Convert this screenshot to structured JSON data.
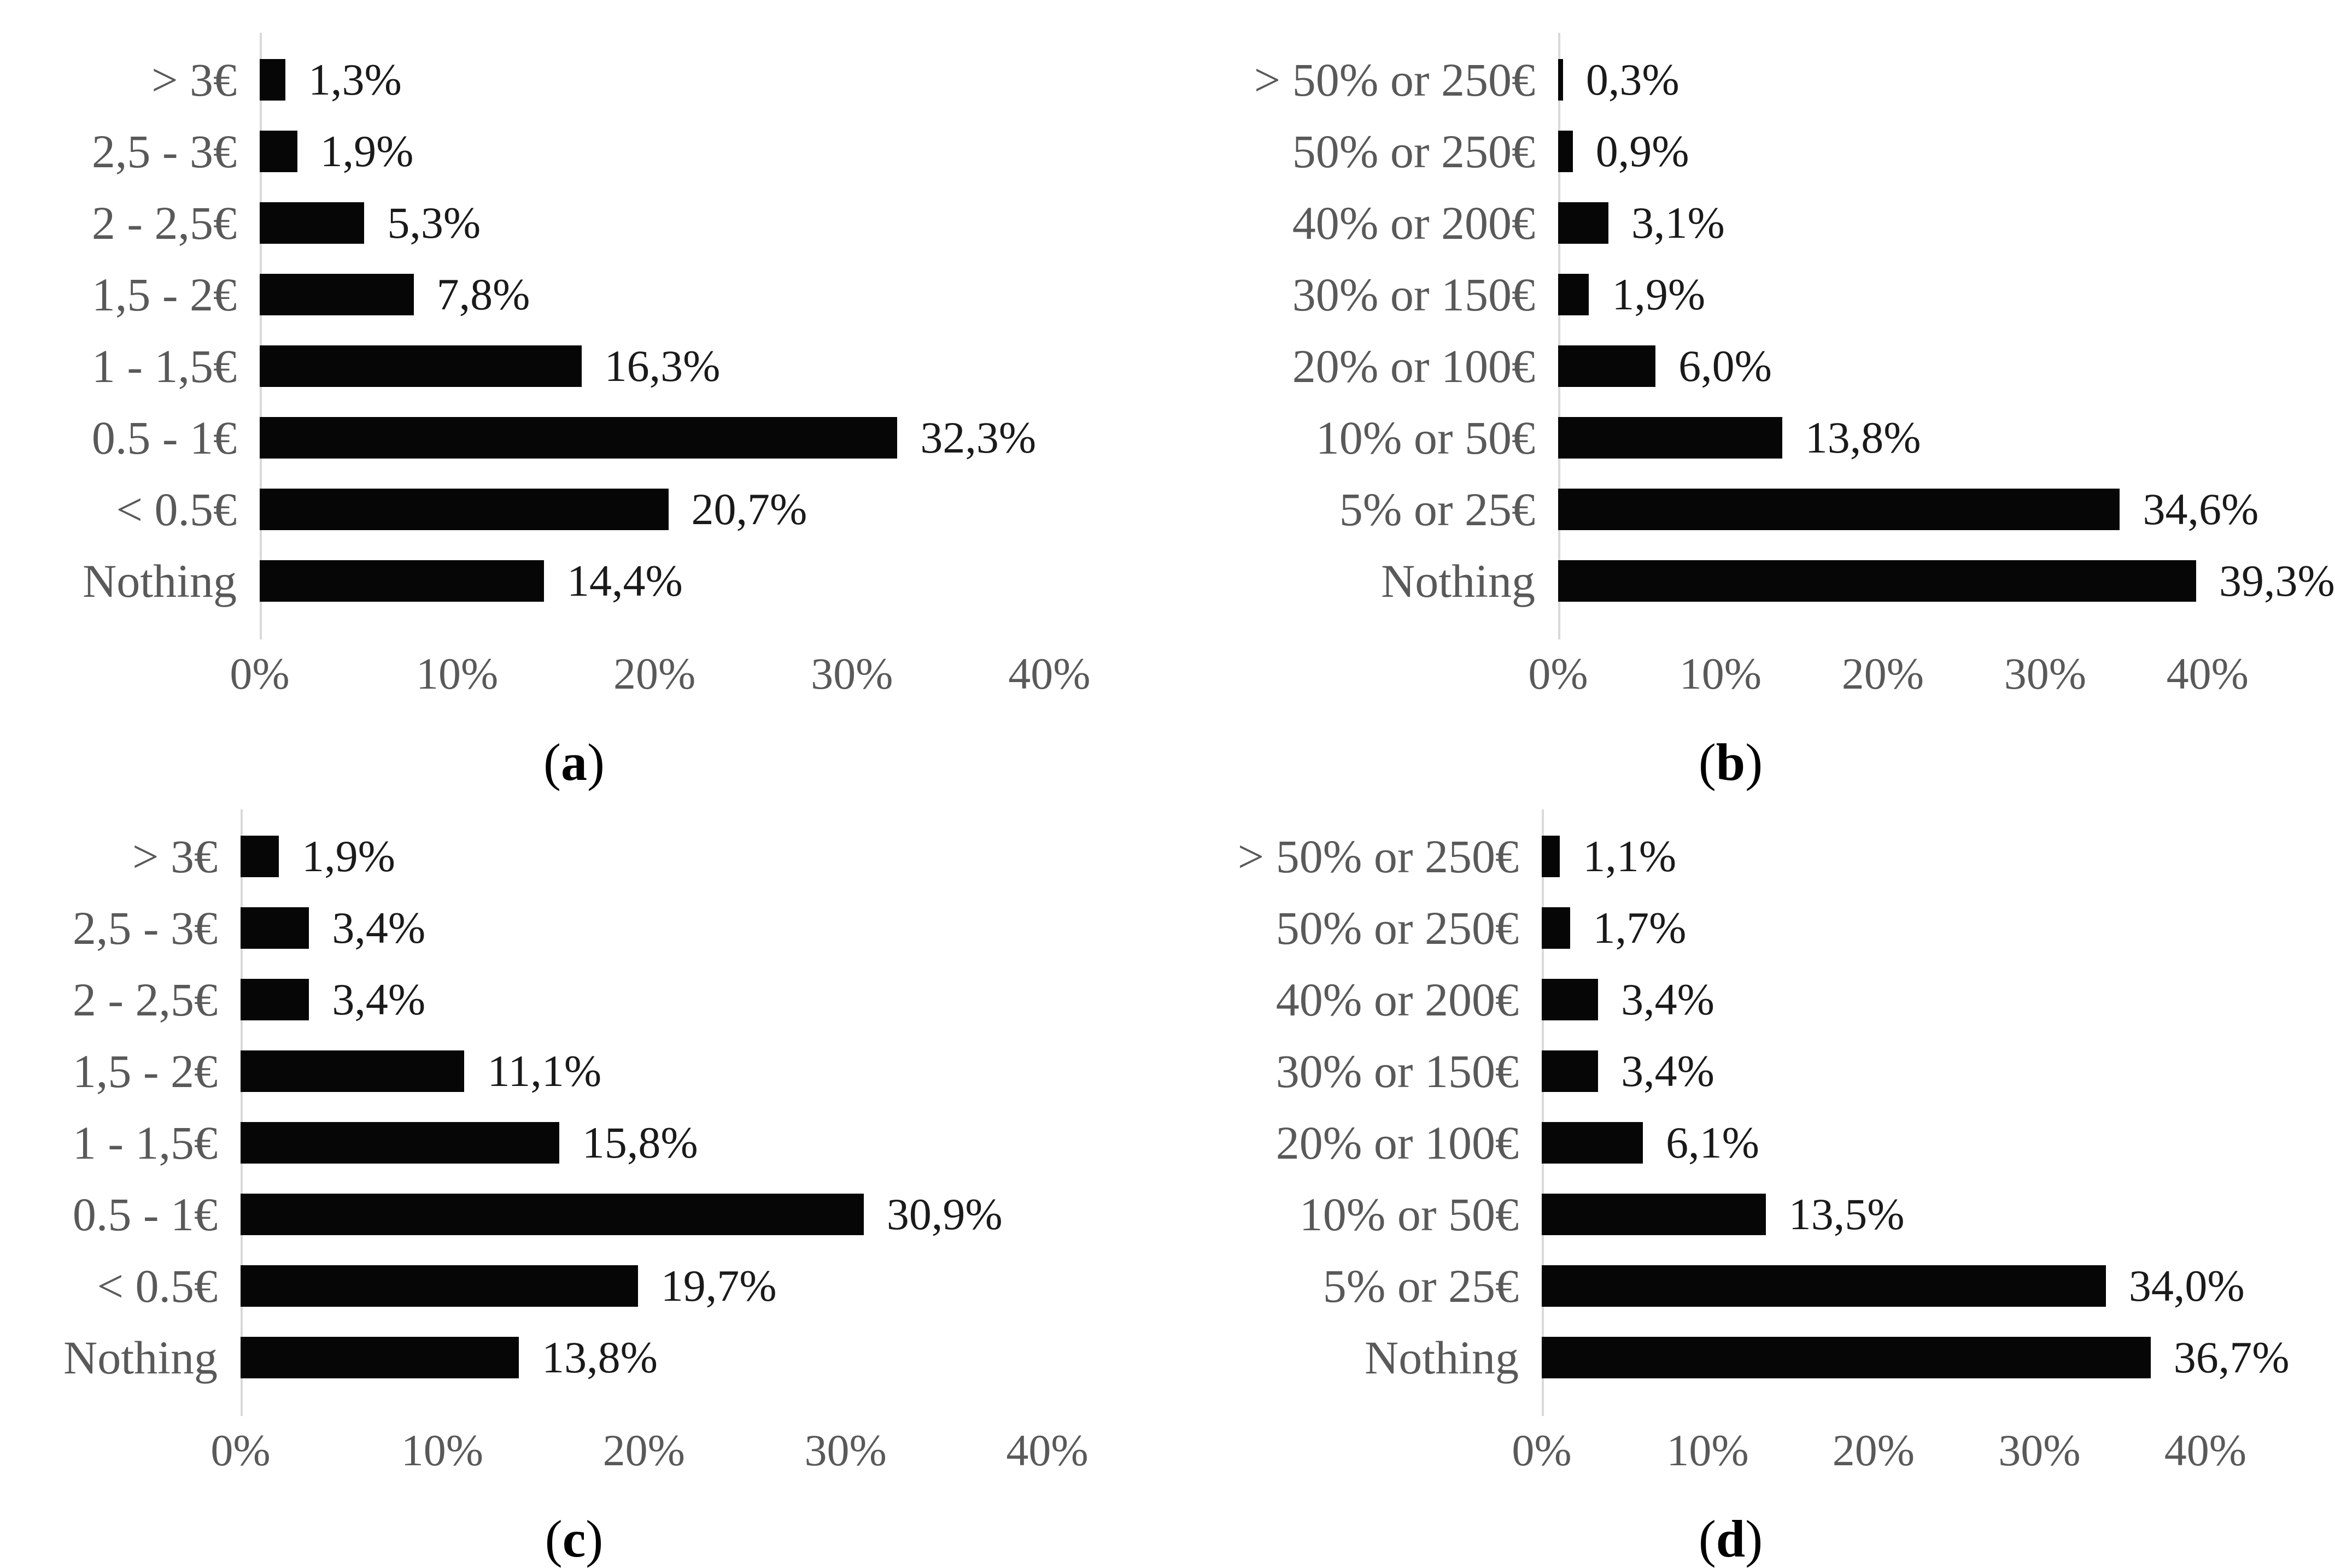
{
  "page": {
    "background": "#ffffff"
  },
  "colors": {
    "bar": "#060606",
    "category_label": "#595959",
    "value_label": "#1a1a1a",
    "tick_label": "#595959",
    "axis_line": "#d9d9d9",
    "caption": "#000000"
  },
  "chart_data": [
    {
      "id": "a",
      "type": "bar",
      "orientation": "horizontal",
      "caption_open": "(",
      "caption_letter": "a",
      "caption_close": ")",
      "categories": [
        "> 3€",
        "2,5 - 3€",
        "2 - 2,5€",
        "1,5 - 2€",
        "1 - 1,5€",
        "0.5 - 1€",
        "< 0.5€",
        "Nothing"
      ],
      "values": [
        1.3,
        1.9,
        5.3,
        7.8,
        16.3,
        32.3,
        20.7,
        14.4
      ],
      "value_labels": [
        "1,3%",
        "1,9%",
        "5,3%",
        "7,8%",
        "16,3%",
        "32,3%",
        "20,7%",
        "14,4%"
      ],
      "xtick_labels": [
        "0%",
        "10%",
        "20%",
        "30%",
        "40%"
      ],
      "xtick_values": [
        0,
        10,
        20,
        30,
        40
      ],
      "xlim": [
        0,
        45
      ],
      "grid": false,
      "legend": "none",
      "xlabel": "",
      "ylabel": ""
    },
    {
      "id": "b",
      "type": "bar",
      "orientation": "horizontal",
      "caption_open": "(",
      "caption_letter": "b",
      "caption_close": ")",
      "categories": [
        "> 50% or 250€",
        "50% or 250€",
        "40% or 200€",
        "30% or 150€",
        "20% or 100€",
        "10% or 50€",
        "5% or 25€",
        "Nothing"
      ],
      "values": [
        0.3,
        0.9,
        3.1,
        1.9,
        6.0,
        13.8,
        34.6,
        39.3
      ],
      "value_labels": [
        "0,3%",
        "0,9%",
        "3,1%",
        "1,9%",
        "6,0%",
        "13,8%",
        "34,6%",
        "39,3%"
      ],
      "xtick_labels": [
        "0%",
        "10%",
        "20%",
        "30%",
        "40%"
      ],
      "xtick_values": [
        0,
        10,
        20,
        30,
        40
      ],
      "xlim": [
        0,
        46
      ],
      "grid": false,
      "legend": "none",
      "xlabel": "",
      "ylabel": ""
    },
    {
      "id": "c",
      "type": "bar",
      "orientation": "horizontal",
      "caption_open": "(",
      "caption_letter": "c",
      "caption_close": ")",
      "categories": [
        "> 3€",
        "2,5 - 3€",
        "2 - 2,5€",
        "1,5 - 2€",
        "1 - 1,5€",
        "0.5 - 1€",
        "< 0.5€",
        "Nothing"
      ],
      "values": [
        1.9,
        3.4,
        3.4,
        11.1,
        15.8,
        30.9,
        19.7,
        13.8
      ],
      "value_labels": [
        "1,9%",
        "3,4%",
        "3,4%",
        "11,1%",
        "15,8%",
        "30,9%",
        "19,7%",
        "13,8%"
      ],
      "xtick_labels": [
        "0%",
        "10%",
        "20%",
        "30%",
        "40%"
      ],
      "xtick_values": [
        0,
        10,
        20,
        30,
        40
      ],
      "xlim": [
        0,
        45
      ],
      "grid": false,
      "legend": "none",
      "xlabel": "",
      "ylabel": ""
    },
    {
      "id": "d",
      "type": "bar",
      "orientation": "horizontal",
      "caption_open": "(",
      "caption_letter": "d",
      "caption_close": ")",
      "categories": [
        "> 50% or 250€",
        "50% or 250€",
        "40% or 200€",
        "30% or 150€",
        "20% or 100€",
        "10% or 50€",
        "5% or 25€",
        "Nothing"
      ],
      "values": [
        1.1,
        1.7,
        3.4,
        3.4,
        6.1,
        13.5,
        34.0,
        36.7
      ],
      "value_labels": [
        "1,1%",
        "1,7%",
        "3,4%",
        "3,4%",
        "6,1%",
        "13,5%",
        "34,0%",
        "36,7%"
      ],
      "xtick_labels": [
        "0%",
        "10%",
        "20%",
        "30%",
        "40%"
      ],
      "xtick_values": [
        0,
        10,
        20,
        30,
        40
      ],
      "xlim": [
        0,
        46
      ],
      "grid": false,
      "legend": "none",
      "xlabel": "",
      "ylabel": ""
    }
  ]
}
